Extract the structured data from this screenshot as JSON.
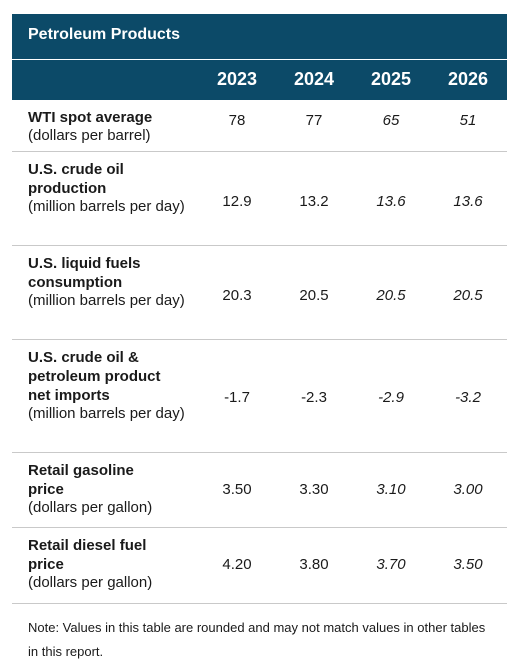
{
  "table": {
    "title": "Petroleum Products",
    "years": [
      "2023",
      "2024",
      "2025",
      "2026"
    ],
    "rows": [
      {
        "label_lines": [
          "WTI spot average"
        ],
        "unit": "(dollars per barrel)",
        "values": [
          "78",
          "77",
          "65",
          "51"
        ]
      },
      {
        "label_lines": [
          "U.S. crude oil",
          "production"
        ],
        "unit": "(million barrels per day)",
        "values": [
          "12.9",
          "13.2",
          "13.6",
          "13.6"
        ]
      },
      {
        "label_lines": [
          "U.S. liquid fuels",
          "consumption"
        ],
        "unit": "(million barrels per day)",
        "values": [
          "20.3",
          "20.5",
          "20.5",
          "20.5"
        ]
      },
      {
        "label_lines": [
          "U.S. crude oil &",
          "petroleum product",
          "net imports"
        ],
        "unit": "(million barrels per day)",
        "values": [
          "-1.7",
          "-2.3",
          "-2.9",
          "-3.2"
        ]
      },
      {
        "label_lines": [
          "Retail gasoline",
          "price"
        ],
        "unit": "(dollars per gallon)",
        "values": [
          "3.50",
          "3.30",
          "3.10",
          "3.00"
        ]
      },
      {
        "label_lines": [
          "Retail diesel fuel",
          "price"
        ],
        "unit": "(dollars per gallon)",
        "values": [
          "4.20",
          "3.80",
          "3.70",
          "3.50"
        ]
      }
    ],
    "note": "Note: Values in this table are rounded and may not match values in other tables in this report.",
    "colors": {
      "header_bg": "#0c4a68",
      "header_text": "#ffffff",
      "divider": "#c9c9c9"
    }
  }
}
